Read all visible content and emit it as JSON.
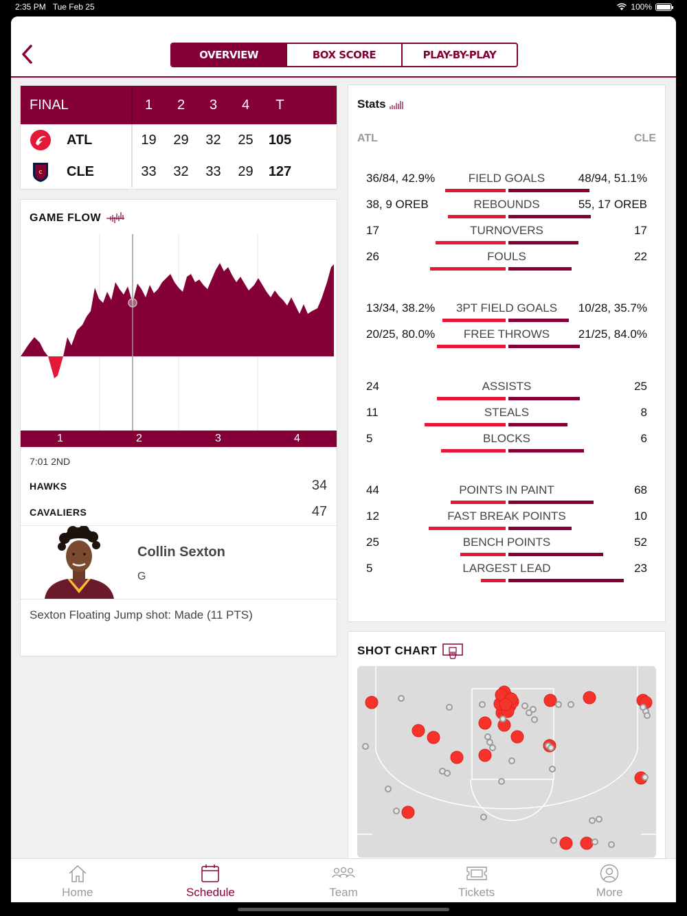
{
  "status_bar": {
    "time": "2:35 PM",
    "date": "Tue Feb 25",
    "battery": "100%"
  },
  "nav": {
    "tabs": [
      {
        "label": "OVERVIEW",
        "active": true
      },
      {
        "label": "BOX SCORE",
        "active": false
      },
      {
        "label": "PLAY-BY-PLAY",
        "active": false
      }
    ]
  },
  "scoreboard": {
    "status": "FINAL",
    "periods": [
      "1",
      "2",
      "3",
      "4"
    ],
    "total_label": "T",
    "teams": [
      {
        "abbr": "ATL",
        "quarters": [
          "19",
          "29",
          "32",
          "25"
        ],
        "total": "105"
      },
      {
        "abbr": "CLE",
        "quarters": [
          "33",
          "32",
          "33",
          "29"
        ],
        "total": "127"
      }
    ]
  },
  "game_flow": {
    "title": "GAME FLOW",
    "quarters": [
      "1",
      "2",
      "3",
      "4"
    ],
    "clock": "7:01 2ND",
    "home": {
      "name": "HAWKS",
      "score": "34"
    },
    "away": {
      "name": "CAVALIERS",
      "score": "47"
    },
    "player": {
      "name": "Collin Sexton",
      "position": "G"
    },
    "play": "Sexton Floating Jump shot: Made (11 PTS)"
  },
  "stats": {
    "title": "Stats",
    "left_team": "ATL",
    "right_team": "CLE",
    "rows": [
      {
        "label": "FIELD GOALS",
        "left": "36/84, 42.9%",
        "right": "48/94, 51.1%",
        "lw": 88,
        "rw": 118
      },
      {
        "label": "REBOUNDS",
        "left": "38, 9 OREB",
        "right": "55, 17 OREB",
        "lw": 84,
        "rw": 120
      },
      {
        "label": "TURNOVERS",
        "left": "17",
        "right": "17",
        "lw": 102,
        "rw": 102
      },
      {
        "label": "FOULS",
        "left": "26",
        "right": "22",
        "lw": 110,
        "rw": 92
      },
      {
        "label": "3PT FIELD GOALS",
        "left": "13/34, 38.2%",
        "right": "10/28, 35.7%",
        "lw": 92,
        "rw": 88
      },
      {
        "label": "FREE THROWS",
        "left": "20/25, 80.0%",
        "right": "21/25, 84.0%",
        "lw": 100,
        "rw": 104
      },
      {
        "label": "ASSISTS",
        "left": "24",
        "right": "25",
        "lw": 100,
        "rw": 104
      },
      {
        "label": "STEALS",
        "left": "11",
        "right": "8",
        "lw": 118,
        "rw": 86
      },
      {
        "label": "BLOCKS",
        "left": "5",
        "right": "6",
        "lw": 94,
        "rw": 110
      },
      {
        "label": "POINTS IN PAINT",
        "left": "44",
        "right": "68",
        "lw": 80,
        "rw": 124
      },
      {
        "label": "FAST BREAK POINTS",
        "left": "12",
        "right": "10",
        "lw": 112,
        "rw": 92
      },
      {
        "label": "BENCH POINTS",
        "left": "25",
        "right": "52",
        "lw": 66,
        "rw": 138
      },
      {
        "label": "LARGEST LEAD",
        "left": "5",
        "right": "23",
        "lw": 36,
        "rw": 168
      }
    ]
  },
  "shot_chart": {
    "title": "SHOT CHART"
  },
  "tabbar": {
    "items": [
      {
        "label": "Home",
        "icon": "home-icon",
        "active": false
      },
      {
        "label": "Schedule",
        "icon": "calendar-icon",
        "active": true
      },
      {
        "label": "Team",
        "icon": "team-icon",
        "active": false
      },
      {
        "label": "Tickets",
        "icon": "ticket-icon",
        "active": false
      },
      {
        "label": "More",
        "icon": "profile-icon",
        "active": false
      }
    ]
  },
  "colors": {
    "wine": "#860038",
    "red": "#e31937",
    "made": "#f5332a",
    "missed": "#9a9a9a"
  }
}
